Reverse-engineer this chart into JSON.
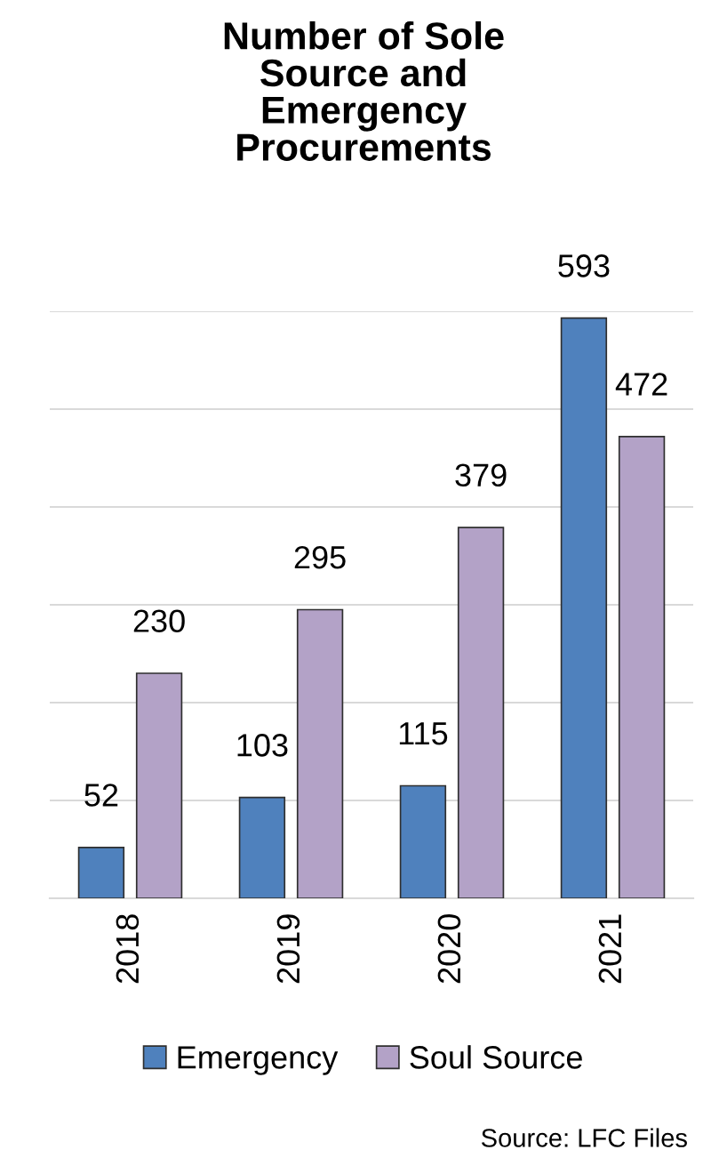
{
  "chart_data": {
    "type": "bar",
    "title": "Number of Sole\nSource and\nEmergency\nProcurements",
    "categories": [
      "2018",
      "2019",
      "2020",
      "2021"
    ],
    "series": [
      {
        "name": "Emergency",
        "color": "#4f81bd",
        "values": [
          52,
          103,
          115,
          593
        ]
      },
      {
        "name": "Soul Source",
        "color": "#b3a2c7",
        "values": [
          230,
          295,
          379,
          472
        ]
      }
    ],
    "ylim": [
      0,
      600
    ],
    "yticks": [
      {
        "value": 0,
        "label": null
      },
      {
        "value": 100,
        "label": null
      },
      {
        "value": 200,
        "label": null
      },
      {
        "value": 300,
        "label": null
      },
      {
        "value": 400,
        "label": null
      },
      {
        "value": 500,
        "label": null
      },
      {
        "value": 600,
        "label": null
      }
    ],
    "grid": "y",
    "data_labels": true,
    "legend": "bottom",
    "annotations": [
      "Source: LFC Files"
    ]
  }
}
